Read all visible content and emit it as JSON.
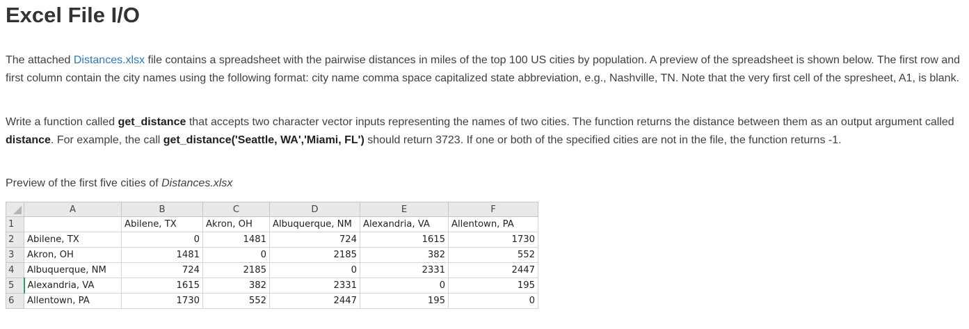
{
  "title": "Excel File I/O",
  "para1": {
    "before_link": "The attached ",
    "link": "Distances.xlsx",
    "after_link": " file contains a spreadsheet with the pairwise distances in miles of the top 100 US cities by population. A preview of the spreadsheet is shown below. The first row and first column contain the city names using the following format: city name comma space capitalized state abbreviation, e.g., Nashville, TN. Note that the very first cell of the spresheet, A1, is blank."
  },
  "para2": {
    "t1": "Write a function called ",
    "b1": "get_distance",
    "t2": " that accepts two character vector inputs representing the names of two cities. The function returns the distance between them as an output argument called ",
    "b2": "distance",
    "t3": ". For example, the call ",
    "b3": "get_distance('Seattle, WA','Miami, FL')",
    "t4": " should return 3723. If one or both of the specified cities are not in the file, the function returns -1."
  },
  "para3": {
    "text": "Preview of the first five cities of ",
    "italic": "Distances.xlsx"
  },
  "sheet": {
    "col_headers": [
      "A",
      "B",
      "C",
      "D",
      "E",
      "F"
    ],
    "row_numbers": [
      "1",
      "2",
      "3",
      "4",
      "5",
      "6"
    ],
    "header_row": [
      "",
      "Abilene, TX",
      "Akron, OH",
      "Albuquerque, NM",
      "Alexandria, VA",
      "Allentown, PA"
    ],
    "rows": [
      {
        "city": "Abilene, TX",
        "values": [
          "0",
          "1481",
          "724",
          "1615",
          "1730"
        ]
      },
      {
        "city": "Akron, OH",
        "values": [
          "1481",
          "0",
          "2185",
          "382",
          "552"
        ]
      },
      {
        "city": "Albuquerque, NM",
        "values": [
          "724",
          "2185",
          "0",
          "2331",
          "2447"
        ]
      },
      {
        "city": "Alexandria, VA",
        "values": [
          "1615",
          "382",
          "2331",
          "0",
          "195"
        ]
      },
      {
        "city": "Allentown, PA",
        "values": [
          "1730",
          "552",
          "2447",
          "195",
          "0"
        ]
      }
    ]
  }
}
